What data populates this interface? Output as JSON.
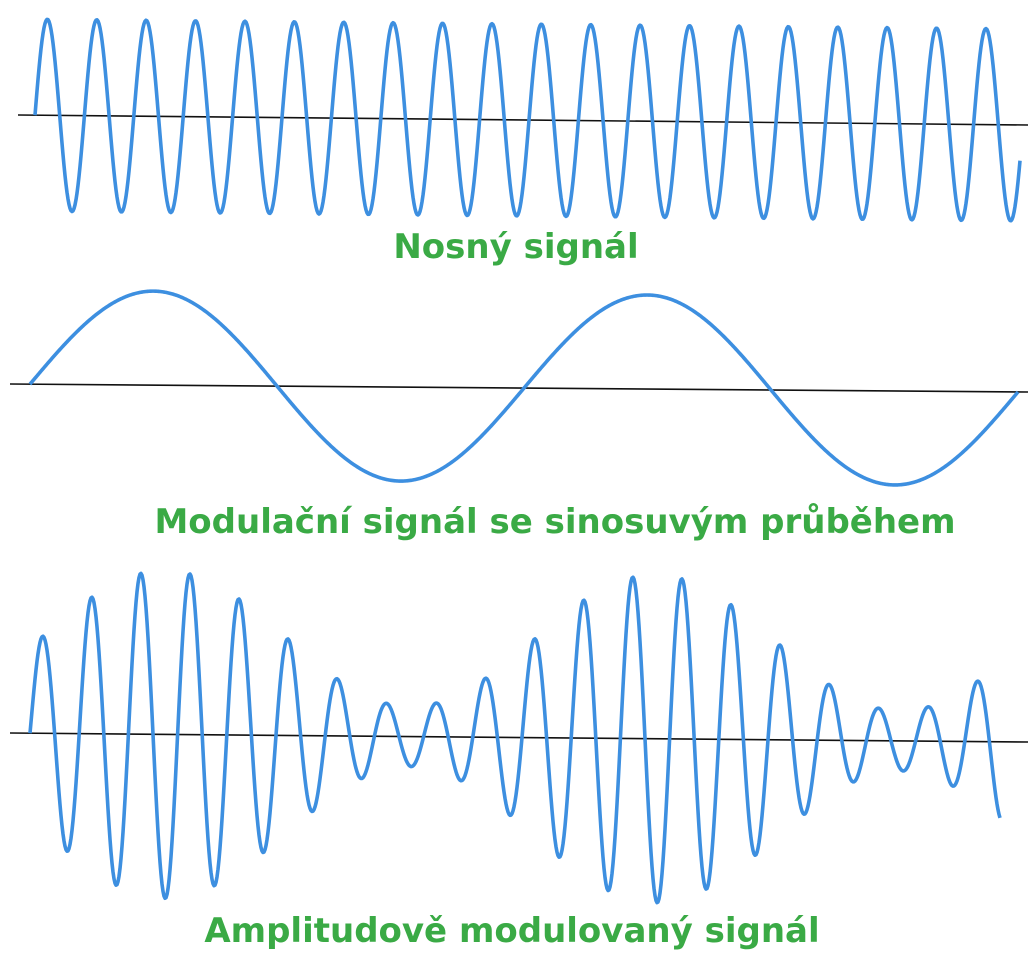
{
  "panels": [
    {
      "label": "Nosný signál"
    },
    {
      "label": "Modulační signál se sinosuvým průběhem"
    },
    {
      "label": "Amplitudově modulovaný signál"
    }
  ]
}
